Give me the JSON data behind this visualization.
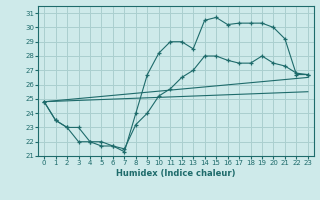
{
  "xlabel": "Humidex (Indice chaleur)",
  "bg_color": "#ceeaea",
  "grid_color": "#aacfcf",
  "line_color": "#1e6b6b",
  "xlim": [
    -0.5,
    23.5
  ],
  "ylim": [
    21,
    31.5
  ],
  "yticks": [
    21,
    22,
    23,
    24,
    25,
    26,
    27,
    28,
    29,
    30,
    31
  ],
  "xticks": [
    0,
    1,
    2,
    3,
    4,
    5,
    6,
    7,
    8,
    9,
    10,
    11,
    12,
    13,
    14,
    15,
    16,
    17,
    18,
    19,
    20,
    21,
    22,
    23
  ],
  "line1_x": [
    0,
    1,
    2,
    3,
    4,
    5,
    6,
    7,
    8,
    9,
    10,
    11,
    12,
    13,
    14,
    15,
    16,
    17,
    18,
    19,
    20,
    21,
    22,
    23
  ],
  "line1_y": [
    24.8,
    23.5,
    23.0,
    22.0,
    22.0,
    21.7,
    21.7,
    21.3,
    24.0,
    26.7,
    28.2,
    29.0,
    29.0,
    28.5,
    30.5,
    30.7,
    30.2,
    30.3,
    30.3,
    30.3,
    30.0,
    29.2,
    26.7,
    26.7
  ],
  "line2_x": [
    0,
    1,
    2,
    3,
    4,
    5,
    6,
    7,
    8,
    9,
    10,
    11,
    12,
    13,
    14,
    15,
    16,
    17,
    18,
    19,
    20,
    21,
    22,
    23
  ],
  "line2_y": [
    24.8,
    23.5,
    23.0,
    23.0,
    22.0,
    22.0,
    21.7,
    21.5,
    23.2,
    24.0,
    25.2,
    25.7,
    26.5,
    27.0,
    28.0,
    28.0,
    27.7,
    27.5,
    27.5,
    28.0,
    27.5,
    27.3,
    26.8,
    26.7
  ],
  "line3_x": [
    0,
    23
  ],
  "line3_y": [
    24.8,
    26.5
  ],
  "line4_x": [
    0,
    23
  ],
  "line4_y": [
    24.8,
    25.5
  ]
}
